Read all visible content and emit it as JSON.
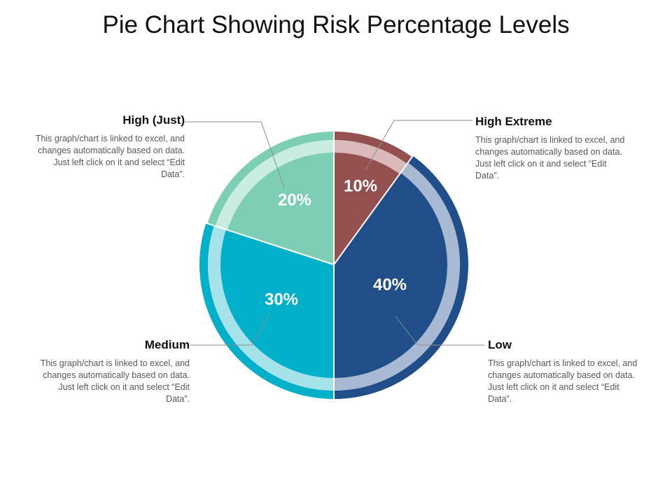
{
  "title": "Pie Chart Showing Risk Percentage Levels",
  "chart_data": {
    "type": "pie",
    "title": "Pie Chart Showing Risk Percentage Levels",
    "slices": [
      {
        "name": "High Extreme",
        "value": 10,
        "label": "10%",
        "color": "#93504f",
        "ring_color": "#d9b9b9",
        "description": "This graph/chart is linked to excel, and changes automatically based on data. Just left click on it and select “Edit Data”."
      },
      {
        "name": "Low",
        "value": 40,
        "label": "40%",
        "color": "#1f4e88",
        "ring_color": "#a8b9d3",
        "description": "This graph/chart is linked to excel, and changes automatically based on data. Just left click on it and select “Edit Data”."
      },
      {
        "name": "Medium",
        "value": 30,
        "label": "30%",
        "color": "#00b0c8",
        "ring_color": "#a5e2ea",
        "description": "This graph/chart is linked to excel, and changes automatically based on data. Just left click on it and select “Edit Data”."
      },
      {
        "name": "High (Just)",
        "value": 20,
        "label": "20%",
        "color": "#7ccfb5",
        "ring_color": "#c9ede2",
        "description": "This graph/chart is linked to excel, and changes automatically based on data. Just left click on it and select “Edit Data”."
      }
    ]
  }
}
